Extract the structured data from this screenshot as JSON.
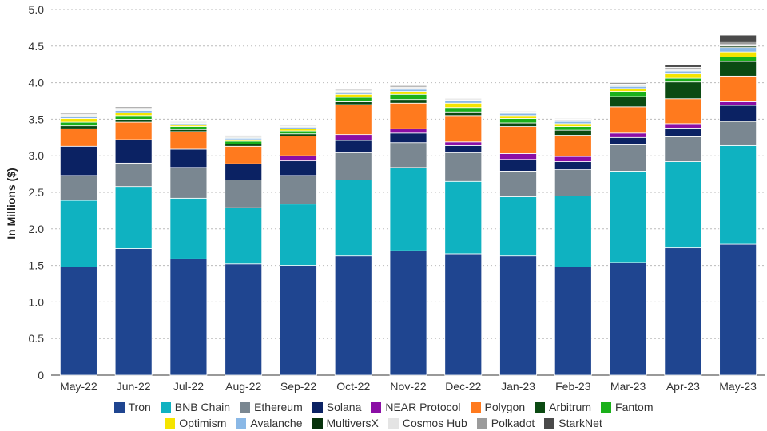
{
  "chart_data": {
    "type": "bar",
    "stacked": true,
    "ylabel": "In Millions ($)",
    "ylim": [
      0,
      5.0
    ],
    "yticks": [
      "0",
      "0.5",
      "1.0",
      "1.5",
      "2.0",
      "2.5",
      "3.0",
      "3.5",
      "4.0",
      "4.5",
      "5.0"
    ],
    "grid": true,
    "legend_position": "bottom",
    "categories": [
      "May-22",
      "Jun-22",
      "Jul-22",
      "Aug-22",
      "Sep-22",
      "Oct-22",
      "Nov-22",
      "Dec-22",
      "Jan-23",
      "Feb-23",
      "Mar-23",
      "Apr-23",
      "May-23"
    ],
    "series": [
      {
        "name": "Tron",
        "color": "#1f4590",
        "values": [
          1.48,
          1.73,
          1.59,
          1.52,
          1.5,
          1.63,
          1.7,
          1.66,
          1.63,
          1.48,
          1.54,
          1.74,
          1.79
        ]
      },
      {
        "name": "BNB Chain",
        "color": "#0fb2c1",
        "values": [
          0.91,
          0.85,
          0.83,
          0.77,
          0.84,
          1.04,
          1.14,
          0.99,
          0.81,
          0.97,
          1.25,
          1.18,
          1.35
        ]
      },
      {
        "name": "Ethereum",
        "color": "#7a8791",
        "values": [
          0.34,
          0.32,
          0.42,
          0.38,
          0.39,
          0.37,
          0.34,
          0.39,
          0.35,
          0.36,
          0.36,
          0.34,
          0.33
        ]
      },
      {
        "name": "Solana",
        "color": "#0b2263",
        "values": [
          0.4,
          0.32,
          0.25,
          0.22,
          0.2,
          0.17,
          0.13,
          0.1,
          0.16,
          0.11,
          0.1,
          0.12,
          0.22
        ]
      },
      {
        "name": "NEAR Protocol",
        "color": "#8b0ea5",
        "values": [
          0.0,
          0.0,
          0.0,
          0.0,
          0.07,
          0.08,
          0.06,
          0.05,
          0.08,
          0.07,
          0.06,
          0.06,
          0.05
        ]
      },
      {
        "name": "Polygon",
        "color": "#ff7a1e",
        "values": [
          0.24,
          0.24,
          0.24,
          0.24,
          0.27,
          0.41,
          0.35,
          0.36,
          0.37,
          0.29,
          0.36,
          0.34,
          0.35
        ]
      },
      {
        "name": "Arbitrum",
        "color": "#0b4a12",
        "values": [
          0.04,
          0.04,
          0.03,
          0.03,
          0.03,
          0.04,
          0.05,
          0.05,
          0.05,
          0.07,
          0.14,
          0.23,
          0.2
        ]
      },
      {
        "name": "Fantom",
        "color": "#1ab01a",
        "values": [
          0.05,
          0.05,
          0.04,
          0.04,
          0.04,
          0.06,
          0.07,
          0.06,
          0.06,
          0.05,
          0.07,
          0.05,
          0.06
        ]
      },
      {
        "name": "Optimism",
        "color": "#f5e400",
        "values": [
          0.05,
          0.04,
          0.02,
          0.02,
          0.03,
          0.04,
          0.04,
          0.06,
          0.04,
          0.04,
          0.04,
          0.06,
          0.07
        ]
      },
      {
        "name": "Avalanche",
        "color": "#8ab8e6",
        "values": [
          0.03,
          0.03,
          0.02,
          0.02,
          0.02,
          0.03,
          0.03,
          0.03,
          0.03,
          0.03,
          0.03,
          0.04,
          0.06
        ]
      },
      {
        "name": "MultiversX",
        "color": "#06320b",
        "values": [
          0.01,
          0.01,
          0.01,
          0.01,
          0.01,
          0.01,
          0.01,
          0.01,
          0.01,
          0.01,
          0.01,
          0.01,
          0.02
        ]
      },
      {
        "name": "Cosmos Hub",
        "color": "#e4e4e4",
        "values": [
          0.02,
          0.02,
          0.02,
          0.02,
          0.02,
          0.02,
          0.02,
          0.02,
          0.01,
          0.02,
          0.02,
          0.02,
          0.02
        ]
      },
      {
        "name": "Polkadot",
        "color": "#9b9b9b",
        "values": [
          0.02,
          0.02,
          0.01,
          0.01,
          0.01,
          0.02,
          0.02,
          0.01,
          0.01,
          0.01,
          0.02,
          0.02,
          0.04
        ]
      },
      {
        "name": "StarkNet",
        "color": "#4a4a4a",
        "values": [
          0.0,
          0.0,
          0.0,
          0.0,
          0.0,
          0.0,
          0.0,
          0.0,
          0.0,
          0.0,
          0.01,
          0.03,
          0.09
        ]
      }
    ]
  }
}
